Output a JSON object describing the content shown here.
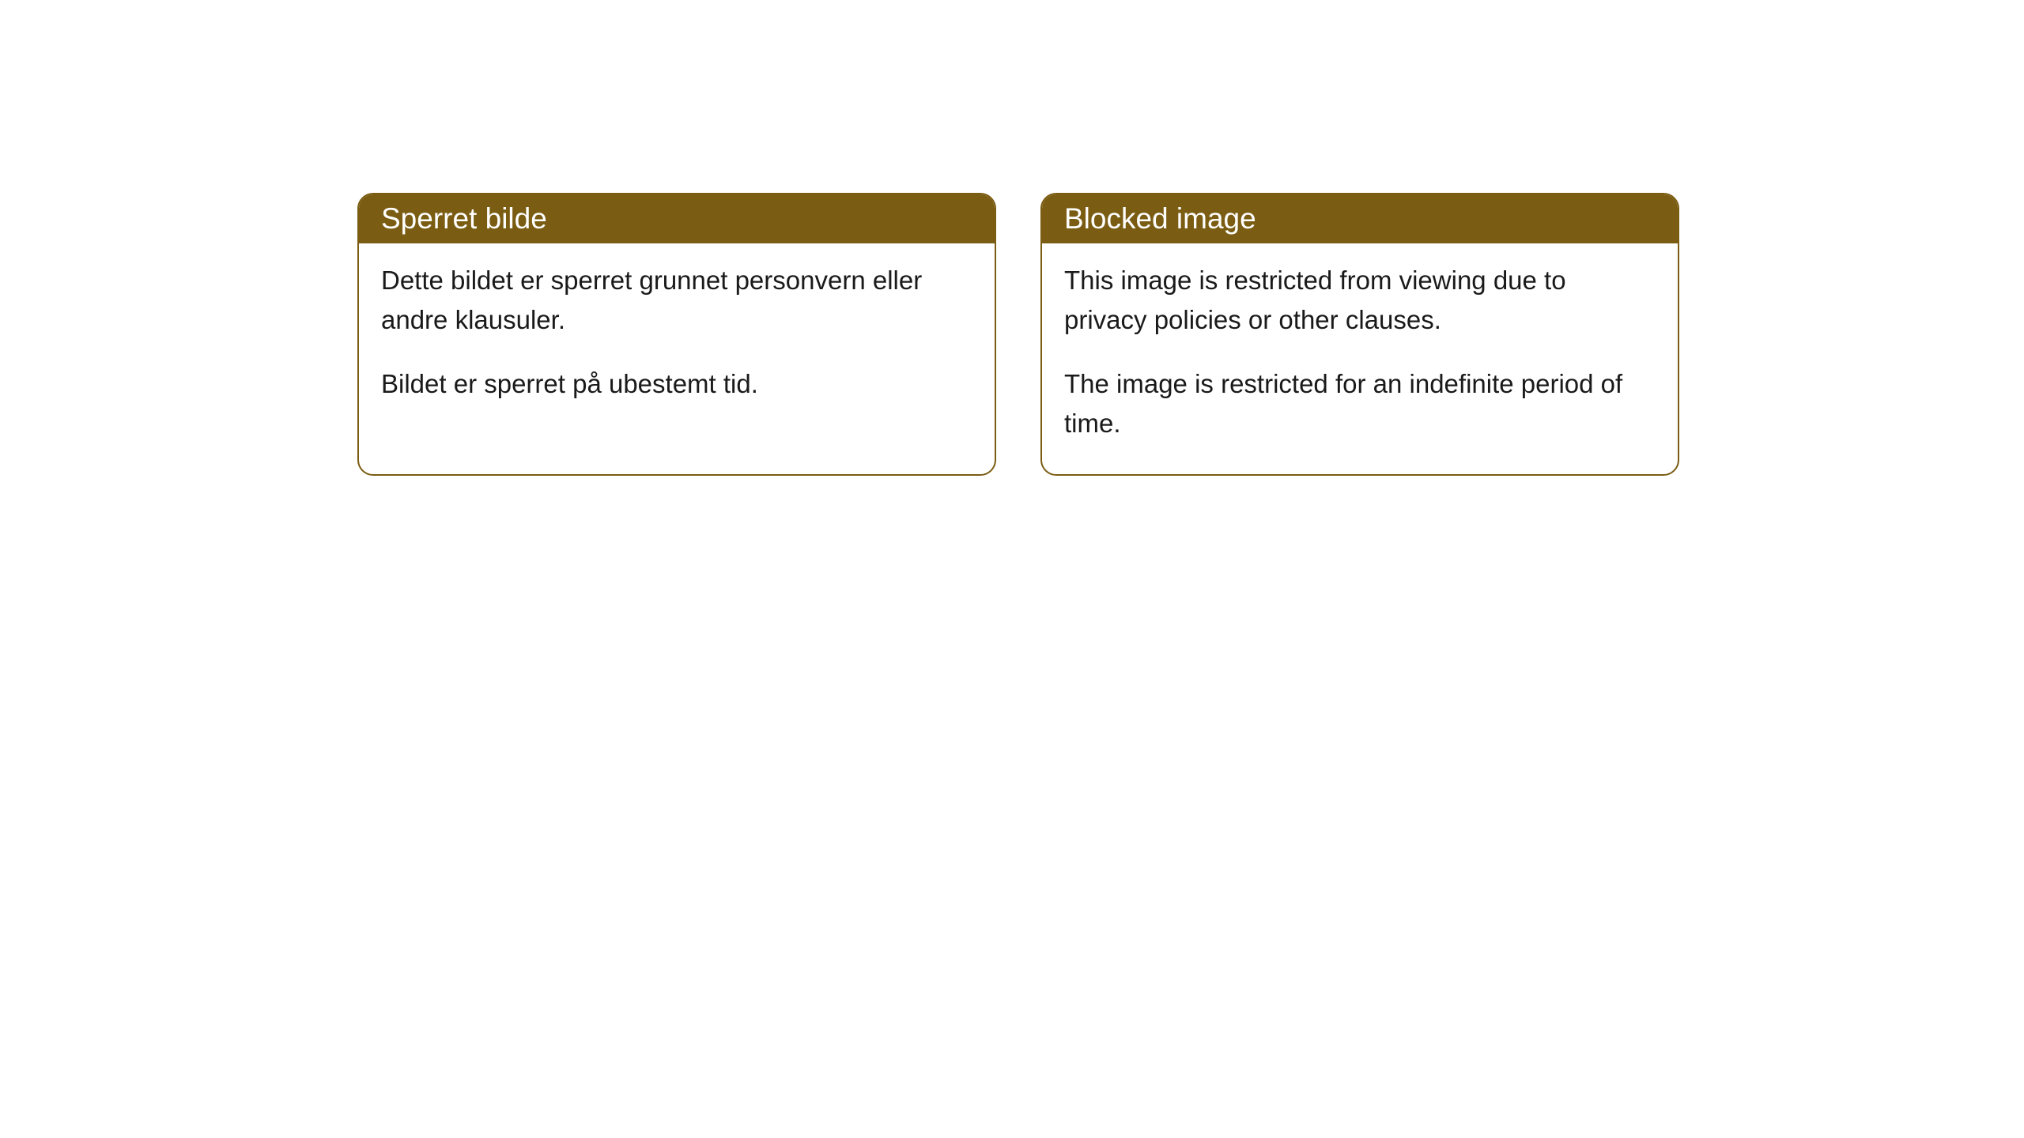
{
  "cards": [
    {
      "title": "Sperret bilde",
      "para1": "Dette bildet er sperret grunnet personvern eller andre klausuler.",
      "para2": "Bildet er sperret på ubestemt tid."
    },
    {
      "title": "Blocked image",
      "para1": "This image is restricted from viewing due to privacy policies or other clauses.",
      "para2": "The image is restricted for an indefinite period of time."
    }
  ],
  "styling": {
    "header_background": "#7a5c12",
    "header_text_color": "#ffffff",
    "border_color": "#7a5c12",
    "body_background": "#ffffff",
    "body_text_color": "#1a1a1a",
    "border_radius": 20,
    "title_fontsize": 37,
    "body_fontsize": 33
  }
}
